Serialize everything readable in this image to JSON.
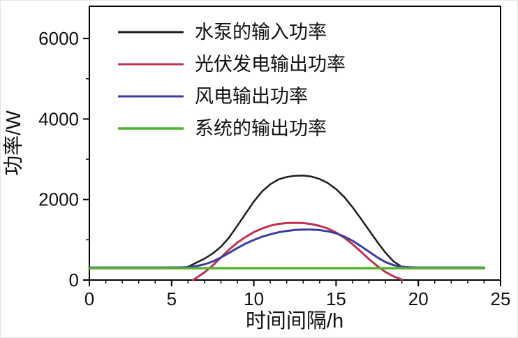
{
  "chart_data": {
    "type": "line",
    "title": "",
    "xlabel": "时间间隔/h",
    "ylabel": "功率/W",
    "xlim": [
      0,
      25
    ],
    "ylim": [
      0,
      6800
    ],
    "x_ticks": [
      0,
      5,
      10,
      15,
      20,
      25
    ],
    "y_ticks": [
      0,
      2000,
      4000,
      6000
    ],
    "x_minor_step": 1,
    "y_minor_step": 1000,
    "grid": false,
    "frame_color": "#000000",
    "legend_position": "upper-left-inside",
    "series": [
      {
        "name": "水泵的输入功率",
        "color": "#1c1c1c",
        "width": 2.5,
        "points": [
          [
            0,
            300
          ],
          [
            2,
            300
          ],
          [
            4,
            300
          ],
          [
            5.5,
            300
          ],
          [
            6,
            330
          ],
          [
            6.5,
            430
          ],
          [
            7,
            530
          ],
          [
            7.5,
            660
          ],
          [
            8,
            830
          ],
          [
            8.5,
            1060
          ],
          [
            9,
            1350
          ],
          [
            9.5,
            1650
          ],
          [
            10,
            1950
          ],
          [
            10.5,
            2200
          ],
          [
            11,
            2380
          ],
          [
            11.5,
            2500
          ],
          [
            12,
            2560
          ],
          [
            12.5,
            2590
          ],
          [
            13,
            2595
          ],
          [
            13.5,
            2570
          ],
          [
            14,
            2510
          ],
          [
            14.5,
            2410
          ],
          [
            15,
            2260
          ],
          [
            15.5,
            2060
          ],
          [
            16,
            1810
          ],
          [
            16.5,
            1530
          ],
          [
            17,
            1240
          ],
          [
            17.5,
            950
          ],
          [
            18,
            680
          ],
          [
            18.5,
            460
          ],
          [
            19,
            330
          ],
          [
            19.5,
            305
          ],
          [
            20,
            300
          ],
          [
            22,
            300
          ],
          [
            24,
            300
          ]
        ]
      },
      {
        "name": "光伏发电输出功率",
        "color": "#bf3350",
        "width": 3,
        "points": [
          [
            6.3,
            0
          ],
          [
            7,
            190
          ],
          [
            7.5,
            360
          ],
          [
            8,
            560
          ],
          [
            8.5,
            760
          ],
          [
            9,
            930
          ],
          [
            9.5,
            1070
          ],
          [
            10,
            1190
          ],
          [
            10.5,
            1280
          ],
          [
            11,
            1350
          ],
          [
            11.5,
            1395
          ],
          [
            12,
            1415
          ],
          [
            12.5,
            1420
          ],
          [
            13,
            1415
          ],
          [
            13.5,
            1390
          ],
          [
            14,
            1345
          ],
          [
            14.5,
            1280
          ],
          [
            15,
            1180
          ],
          [
            15.5,
            1050
          ],
          [
            16,
            890
          ],
          [
            16.5,
            710
          ],
          [
            17,
            520
          ],
          [
            17.5,
            350
          ],
          [
            18,
            200
          ],
          [
            18.5,
            90
          ],
          [
            19,
            10
          ]
        ]
      },
      {
        "name": "风电输出功率",
        "color": "#3d3d9e",
        "width": 3,
        "points": [
          [
            0,
            310
          ],
          [
            2,
            310
          ],
          [
            4,
            310
          ],
          [
            5.5,
            312
          ],
          [
            6,
            320
          ],
          [
            6.5,
            345
          ],
          [
            7,
            390
          ],
          [
            7.5,
            460
          ],
          [
            8,
            560
          ],
          [
            8.5,
            675
          ],
          [
            9,
            795
          ],
          [
            9.5,
            905
          ],
          [
            10,
            995
          ],
          [
            10.5,
            1075
          ],
          [
            11,
            1135
          ],
          [
            11.5,
            1185
          ],
          [
            12,
            1220
          ],
          [
            12.5,
            1245
          ],
          [
            13,
            1255
          ],
          [
            13.5,
            1255
          ],
          [
            14,
            1240
          ],
          [
            14.5,
            1210
          ],
          [
            15,
            1160
          ],
          [
            15.5,
            1080
          ],
          [
            16,
            975
          ],
          [
            16.5,
            845
          ],
          [
            17,
            705
          ],
          [
            17.5,
            565
          ],
          [
            18,
            445
          ],
          [
            18.5,
            370
          ],
          [
            19,
            330
          ],
          [
            19.5,
            315
          ],
          [
            20,
            310
          ],
          [
            22,
            310
          ],
          [
            24,
            310
          ]
        ]
      },
      {
        "name": "系统的输出功率",
        "color": "#57b32e",
        "width": 3.5,
        "points": [
          [
            0,
            295
          ],
          [
            24,
            295
          ]
        ]
      }
    ]
  }
}
